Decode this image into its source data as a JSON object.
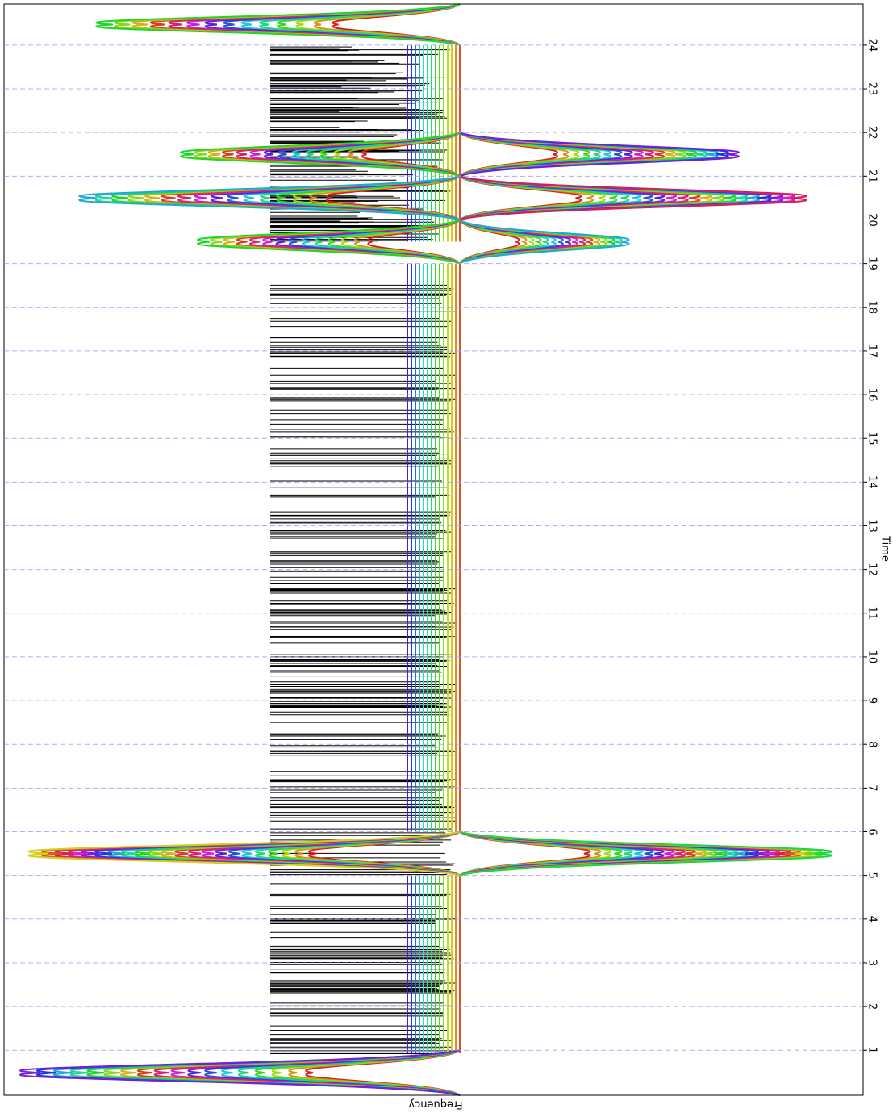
{
  "chart_data": {
    "type": "line",
    "xlabel": "Time",
    "ylabel": "Frequency",
    "xticks": [
      1,
      2,
      3,
      4,
      5,
      6,
      7,
      8,
      9,
      10,
      11,
      12,
      13,
      14,
      15,
      16,
      17,
      18,
      19,
      20,
      21,
      22,
      23,
      24
    ],
    "xlim": [
      -0.03,
      24.94
    ],
    "grid": true,
    "grid_color": "#9999ee"
  }
}
